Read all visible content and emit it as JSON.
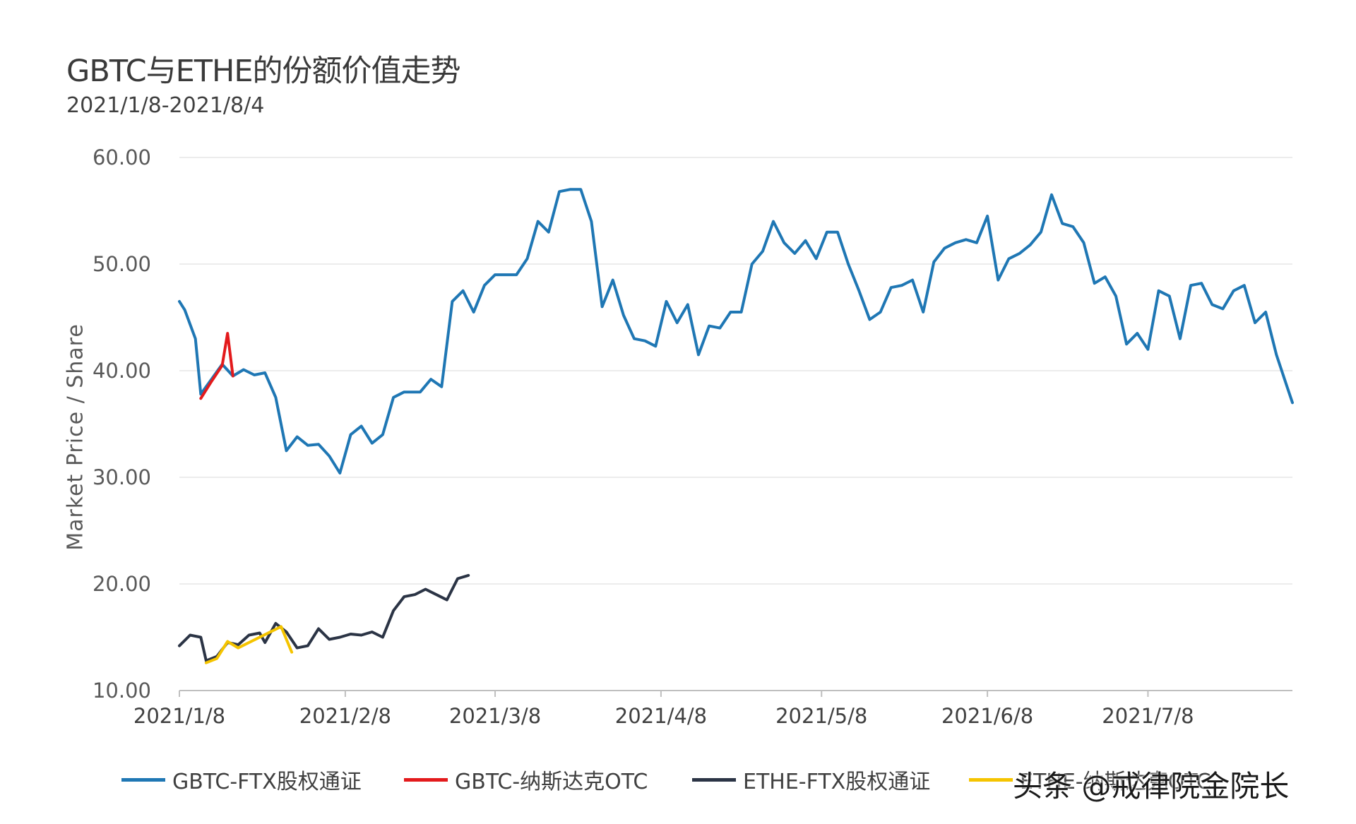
{
  "chart_data": {
    "type": "line",
    "title": "GBTC与ETHE的份额价值走势",
    "subtitle": "2021/1/8-2021/8/4",
    "ylabel": "Market  Price / Share",
    "xlabel": "",
    "ylim": [
      10,
      60
    ],
    "yticks": [
      "60.00",
      "50.00",
      "40.00",
      "30.00",
      "20.00",
      "10.00"
    ],
    "xticks": [
      "2021/1/8",
      "2021/2/8",
      "2021/3/8",
      "2021/4/8",
      "2021/5/8",
      "2021/6/8",
      "2021/7/8"
    ],
    "xrange": [
      "2021-01-08",
      "2021-08-04"
    ],
    "grid": true,
    "legend_position": "bottom",
    "series": [
      {
        "name": "GBTC-FTX股权通证",
        "color": "#1f77b4",
        "points": [
          [
            "2021-01-08",
            46.5
          ],
          [
            "2021-01-09",
            45.7
          ],
          [
            "2021-01-11",
            43.0
          ],
          [
            "2021-01-12",
            37.8
          ],
          [
            "2021-01-14",
            39.2
          ],
          [
            "2021-01-16",
            40.6
          ],
          [
            "2021-01-18",
            39.5
          ],
          [
            "2021-01-20",
            40.1
          ],
          [
            "2021-01-22",
            39.6
          ],
          [
            "2021-01-24",
            39.8
          ],
          [
            "2021-01-26",
            37.5
          ],
          [
            "2021-01-28",
            32.5
          ],
          [
            "2021-01-30",
            33.8
          ],
          [
            "2021-02-01",
            33.0
          ],
          [
            "2021-02-03",
            33.1
          ],
          [
            "2021-02-05",
            32.0
          ],
          [
            "2021-02-07",
            30.4
          ],
          [
            "2021-02-09",
            34.0
          ],
          [
            "2021-02-11",
            34.8
          ],
          [
            "2021-02-13",
            33.2
          ],
          [
            "2021-02-15",
            34.0
          ],
          [
            "2021-02-17",
            37.5
          ],
          [
            "2021-02-19",
            38.0
          ],
          [
            "2021-02-22",
            38.0
          ],
          [
            "2021-02-24",
            39.2
          ],
          [
            "2021-02-26",
            38.5
          ],
          [
            "2021-02-28",
            46.5
          ],
          [
            "2021-03-02",
            47.5
          ],
          [
            "2021-03-04",
            45.5
          ],
          [
            "2021-03-06",
            48.0
          ],
          [
            "2021-03-08",
            49.0
          ],
          [
            "2021-03-10",
            49.0
          ],
          [
            "2021-03-12",
            49.0
          ],
          [
            "2021-03-14",
            50.5
          ],
          [
            "2021-03-16",
            54.0
          ],
          [
            "2021-03-18",
            53.0
          ],
          [
            "2021-03-20",
            56.8
          ],
          [
            "2021-03-22",
            57.0
          ],
          [
            "2021-03-24",
            57.0
          ],
          [
            "2021-03-26",
            54.0
          ],
          [
            "2021-03-28",
            46.0
          ],
          [
            "2021-03-30",
            48.5
          ],
          [
            "2021-04-01",
            45.2
          ],
          [
            "2021-04-03",
            43.0
          ],
          [
            "2021-04-05",
            42.8
          ],
          [
            "2021-04-07",
            42.3
          ],
          [
            "2021-04-09",
            46.5
          ],
          [
            "2021-04-11",
            44.5
          ],
          [
            "2021-04-13",
            46.2
          ],
          [
            "2021-04-15",
            41.5
          ],
          [
            "2021-04-17",
            44.2
          ],
          [
            "2021-04-19",
            44.0
          ],
          [
            "2021-04-21",
            45.5
          ],
          [
            "2021-04-23",
            45.5
          ],
          [
            "2021-04-25",
            50.0
          ],
          [
            "2021-04-27",
            51.2
          ],
          [
            "2021-04-29",
            54.0
          ],
          [
            "2021-05-01",
            52.0
          ],
          [
            "2021-05-03",
            51.0
          ],
          [
            "2021-05-05",
            52.2
          ],
          [
            "2021-05-07",
            50.5
          ],
          [
            "2021-05-09",
            53.0
          ],
          [
            "2021-05-11",
            53.0
          ],
          [
            "2021-05-13",
            50.0
          ],
          [
            "2021-05-15",
            47.5
          ],
          [
            "2021-05-17",
            44.8
          ],
          [
            "2021-05-19",
            45.5
          ],
          [
            "2021-05-21",
            47.8
          ],
          [
            "2021-05-23",
            48.0
          ],
          [
            "2021-05-25",
            48.5
          ],
          [
            "2021-05-27",
            45.5
          ],
          [
            "2021-05-29",
            50.2
          ],
          [
            "2021-05-31",
            51.5
          ],
          [
            "2021-06-02",
            52.0
          ],
          [
            "2021-06-04",
            52.3
          ],
          [
            "2021-06-06",
            52.0
          ],
          [
            "2021-06-08",
            54.5
          ],
          [
            "2021-06-10",
            48.5
          ],
          [
            "2021-06-12",
            50.5
          ],
          [
            "2021-06-14",
            51.0
          ],
          [
            "2021-06-16",
            51.8
          ],
          [
            "2021-06-18",
            53.0
          ],
          [
            "2021-06-20",
            56.5
          ],
          [
            "2021-06-22",
            53.8
          ],
          [
            "2021-06-24",
            53.5
          ],
          [
            "2021-06-26",
            52.0
          ],
          [
            "2021-06-28",
            48.2
          ],
          [
            "2021-06-30",
            48.8
          ],
          [
            "2021-07-02",
            47.0
          ],
          [
            "2021-07-04",
            42.5
          ],
          [
            "2021-07-06",
            43.5
          ],
          [
            "2021-07-08",
            42.0
          ],
          [
            "2021-07-10",
            47.5
          ],
          [
            "2021-07-12",
            47.0
          ],
          [
            "2021-07-14",
            43.0
          ],
          [
            "2021-07-16",
            48.0
          ],
          [
            "2021-07-18",
            48.2
          ],
          [
            "2021-07-20",
            46.2
          ],
          [
            "2021-07-22",
            45.8
          ],
          [
            "2021-07-24",
            47.5
          ],
          [
            "2021-07-26",
            48.0
          ],
          [
            "2021-07-28",
            44.5
          ],
          [
            "2021-07-30",
            45.5
          ],
          [
            "2021-08-01",
            41.5
          ],
          [
            "2021-08-03",
            38.5
          ],
          [
            "2021-08-04",
            37.0
          ]
        ]
      },
      {
        "name": "GBTC-纳斯达克OTC",
        "color": "#e31a1c",
        "points": [
          [
            "2021-01-12",
            37.4
          ],
          [
            "2021-01-14",
            39.0
          ],
          [
            "2021-01-16",
            40.5
          ],
          [
            "2021-01-17",
            43.5
          ],
          [
            "2021-01-18",
            39.5
          ]
        ]
      },
      {
        "name": "ETHE-FTX股权通证",
        "color": "#2b3445",
        "points": [
          [
            "2021-01-08",
            14.2
          ],
          [
            "2021-01-10",
            15.2
          ],
          [
            "2021-01-12",
            15.0
          ],
          [
            "2021-01-13",
            12.8
          ],
          [
            "2021-01-15",
            13.2
          ],
          [
            "2021-01-17",
            14.5
          ],
          [
            "2021-01-19",
            14.3
          ],
          [
            "2021-01-21",
            15.2
          ],
          [
            "2021-01-23",
            15.4
          ],
          [
            "2021-01-24",
            14.5
          ],
          [
            "2021-01-26",
            16.3
          ],
          [
            "2021-01-28",
            15.5
          ],
          [
            "2021-01-30",
            14.0
          ],
          [
            "2021-02-01",
            14.2
          ],
          [
            "2021-02-03",
            15.8
          ],
          [
            "2021-02-05",
            14.8
          ],
          [
            "2021-02-07",
            15.0
          ],
          [
            "2021-02-09",
            15.3
          ],
          [
            "2021-02-11",
            15.2
          ],
          [
            "2021-02-13",
            15.5
          ],
          [
            "2021-02-15",
            15.0
          ],
          [
            "2021-02-17",
            17.5
          ],
          [
            "2021-02-19",
            18.8
          ],
          [
            "2021-02-21",
            19.0
          ],
          [
            "2021-02-23",
            19.5
          ],
          [
            "2021-02-25",
            19.0
          ],
          [
            "2021-02-27",
            18.5
          ],
          [
            "2021-03-01",
            20.5
          ],
          [
            "2021-03-03",
            20.8
          ]
        ]
      },
      {
        "name": "ETHE-纳斯达克OTC",
        "color": "#f5c400",
        "points": [
          [
            "2021-01-13",
            12.6
          ],
          [
            "2021-01-15",
            13.0
          ],
          [
            "2021-01-17",
            14.6
          ],
          [
            "2021-01-19",
            14.0
          ],
          [
            "2021-01-27",
            16.0
          ],
          [
            "2021-01-29",
            13.6
          ]
        ]
      }
    ]
  },
  "watermark": "头条 @戒律院金院长"
}
